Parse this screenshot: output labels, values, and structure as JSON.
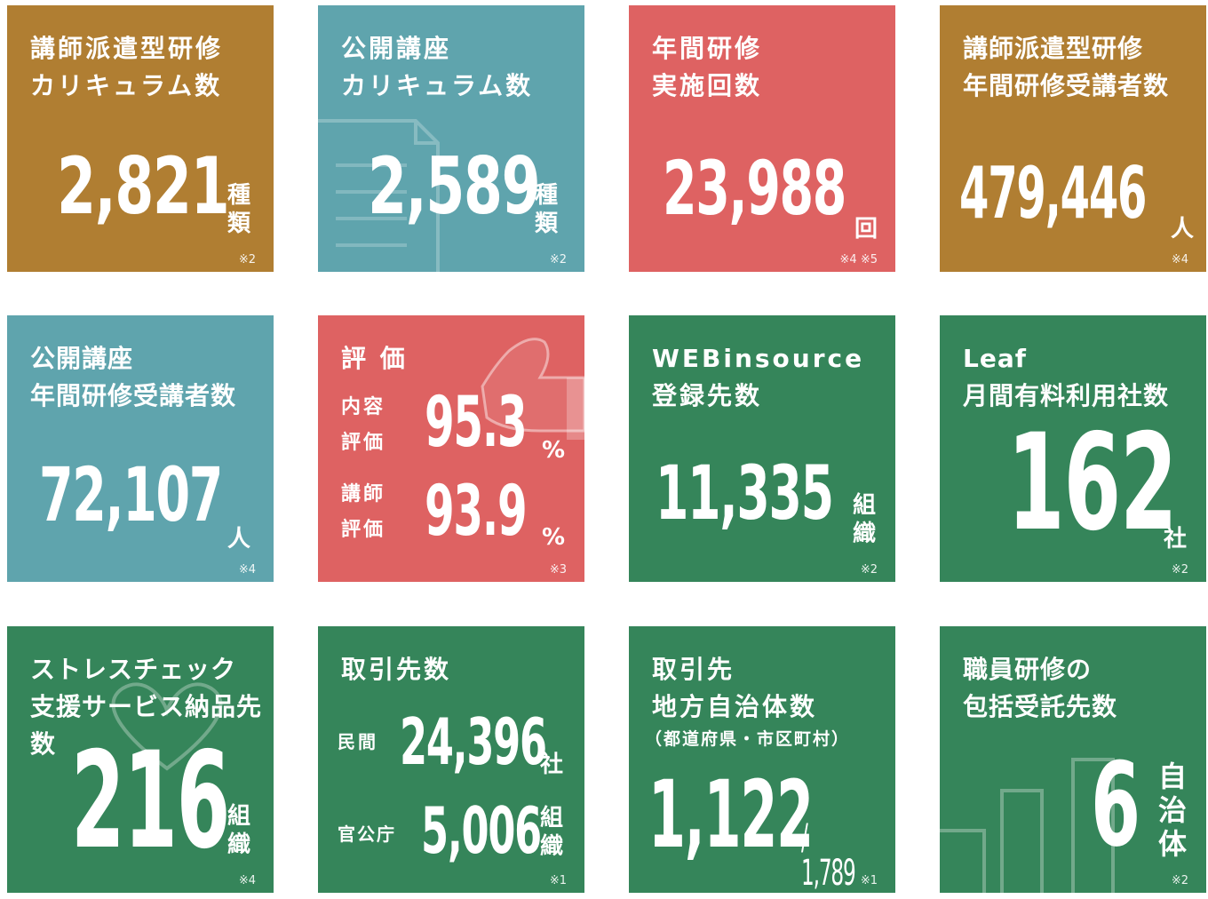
{
  "tiles": [
    {
      "title": "講師派遣型研修\nカリキュラム数",
      "value": "2,821",
      "unit": "種\n類",
      "note": "※2",
      "color": "#b07e32"
    },
    {
      "title": "公開講座\nカリキュラム数",
      "value": "2,589",
      "unit": "種\n類",
      "note": "※2",
      "color": "#5fa4ad"
    },
    {
      "title": "年間研修\n実施回数",
      "value": "23,988",
      "unit": "回",
      "note": "※4 ※5",
      "color": "#de6262"
    },
    {
      "title": "講師派遣型研修\n年間研修受講者数",
      "value": "479,446",
      "unit": "人",
      "note": "※4",
      "color": "#b07e32"
    },
    {
      "title": "公開講座\n年間研修受講者数",
      "value": "72,107",
      "unit": "人",
      "note": "※4",
      "color": "#5fa4ad"
    },
    {
      "title": "評 価",
      "rows": [
        {
          "label": "内容\n評価",
          "value": "95.3",
          "unit": "%"
        },
        {
          "label": "講師\n評価",
          "value": "93.9",
          "unit": "%"
        }
      ],
      "note": "※3",
      "color": "#de6262"
    },
    {
      "title": "WEBinsource\n登録先数",
      "value": "11,335",
      "unit": "組\n織",
      "note": "※2",
      "color": "#35855a"
    },
    {
      "title": "Leaf\n月間有料利用社数",
      "value": "162",
      "unit": "社",
      "note": "※2",
      "color": "#35855a"
    },
    {
      "title": "ストレスチェック\n支援サービス納品先数",
      "value": "216",
      "unit": "組\n織",
      "note": "※4",
      "color": "#35855a"
    },
    {
      "title": "取引先数",
      "rows": [
        {
          "label": "民間",
          "value": "24,396",
          "unit": "社"
        },
        {
          "label": "官公庁",
          "value": "5,006",
          "unit": "組\n織"
        }
      ],
      "note": "※1",
      "color": "#35855a"
    },
    {
      "title": "取引先\n地方自治体数",
      "subtitle": "（都道府県・市区町村）",
      "value": "1,122",
      "denominator": "/ 1,789",
      "note": "※1",
      "color": "#35855a"
    },
    {
      "title": "職員研修の\n包括受託先数",
      "value": "6",
      "unit": "自\n治\n体",
      "note": "※2",
      "color": "#35855a"
    }
  ]
}
